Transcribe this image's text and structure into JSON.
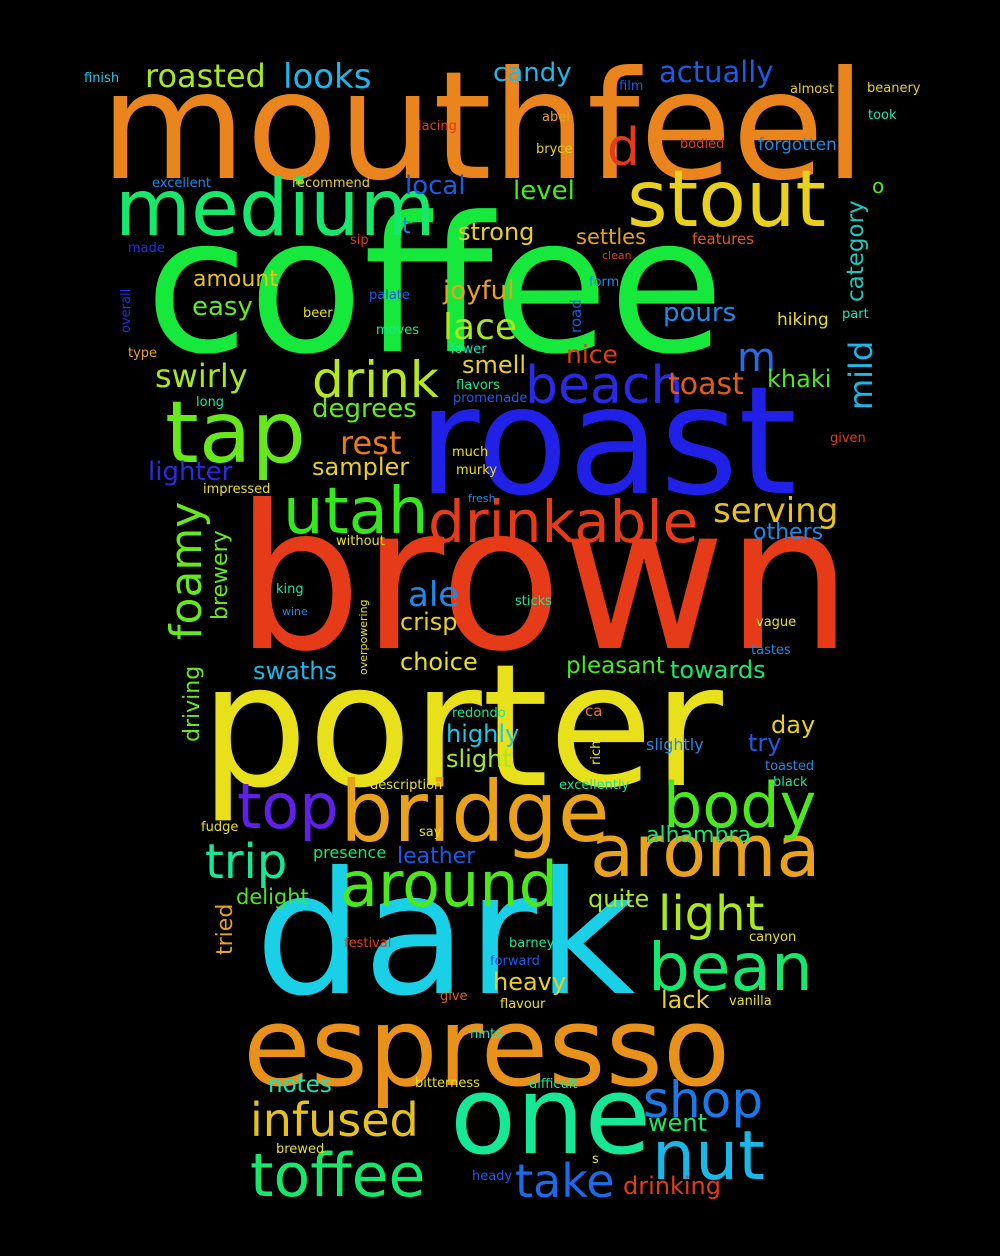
{
  "words": [
    {
      "text": "mouthfeel",
      "color": "#e9851c"
    },
    {
      "text": "coffee",
      "color": "#17e83c"
    },
    {
      "text": "roast",
      "color": "#2020e6"
    },
    {
      "text": "brown",
      "color": "#e53b18"
    },
    {
      "text": "porter",
      "color": "#e8e01a"
    },
    {
      "text": "dark",
      "color": "#19d0e6"
    },
    {
      "text": "espresso",
      "color": "#e8921c"
    },
    {
      "text": "one",
      "color": "#17e896"
    },
    {
      "text": "medium",
      "color": "#17e86b"
    },
    {
      "text": "stout",
      "color": "#e8d01c"
    },
    {
      "text": "tap",
      "color": "#66e81c"
    },
    {
      "text": "bridge",
      "color": "#e8a21c"
    },
    {
      "text": "aroma",
      "color": "#e8a21c"
    },
    {
      "text": "around",
      "color": "#4ae81c"
    },
    {
      "text": "drinkable",
      "color": "#e53b18"
    },
    {
      "text": "utah",
      "color": "#33e81c"
    },
    {
      "text": "beach",
      "color": "#2a2ae6"
    },
    {
      "text": "drink",
      "color": "#b8e81c"
    },
    {
      "text": "body",
      "color": "#4ae81c"
    },
    {
      "text": "bean",
      "color": "#17e86b"
    },
    {
      "text": "top",
      "color": "#6020e6"
    },
    {
      "text": "nut",
      "color": "#19b8e6"
    },
    {
      "text": "toffee",
      "color": "#17e86b"
    },
    {
      "text": "shop",
      "color": "#1c7ae8"
    },
    {
      "text": "take",
      "color": "#1c6ae8"
    },
    {
      "text": "infused",
      "color": "#e8c21c"
    },
    {
      "text": "light",
      "color": "#a8e81c"
    },
    {
      "text": "trip",
      "color": "#17e896"
    },
    {
      "text": "d",
      "color": "#e53b18"
    },
    {
      "text": "m",
      "color": "#2a6ae6"
    },
    {
      "text": "foamy",
      "color": "#66e81c"
    },
    {
      "text": "roasted",
      "color": "#a8e81c"
    },
    {
      "text": "looks",
      "color": "#1cb8e8"
    },
    {
      "text": "candy",
      "color": "#1cb8e8"
    },
    {
      "text": "actually",
      "color": "#1c5ae8"
    },
    {
      "text": "serving",
      "color": "#e8c21c"
    },
    {
      "text": "swirly",
      "color": "#a8e81c"
    },
    {
      "text": "toast",
      "color": "#e55a18"
    },
    {
      "text": "lace",
      "color": "#a8e81c"
    },
    {
      "text": "rest",
      "color": "#e87a1c"
    },
    {
      "text": "mild",
      "color": "#1cb8e8"
    },
    {
      "text": "ale",
      "color": "#1c8ae8"
    },
    {
      "text": "joyful",
      "color": "#e8a21c"
    },
    {
      "text": "local",
      "color": "#1c5ae8"
    },
    {
      "text": "level",
      "color": "#4ae81c"
    },
    {
      "text": "strong",
      "color": "#e8d01c"
    },
    {
      "text": "settles",
      "color": "#e8a21c"
    },
    {
      "text": "easy",
      "color": "#66e81c"
    },
    {
      "text": "amount",
      "color": "#e8c21c"
    },
    {
      "text": "pours",
      "color": "#1c8ae8"
    },
    {
      "text": "degrees",
      "color": "#66e81c"
    },
    {
      "text": "lighter",
      "color": "#2a2ae6"
    },
    {
      "text": "smell",
      "color": "#e8d01c"
    },
    {
      "text": "nice",
      "color": "#e53b18"
    },
    {
      "text": "khaki",
      "color": "#4ae81c"
    },
    {
      "text": "sampler",
      "color": "#e8d01c"
    },
    {
      "text": "category",
      "color": "#1cc8b8"
    },
    {
      "text": "brewery",
      "color": "#66e81c"
    },
    {
      "text": "others",
      "color": "#1c8ae8"
    },
    {
      "text": "crisp",
      "color": "#e8d01c"
    },
    {
      "text": "choice",
      "color": "#e8e01a"
    },
    {
      "text": "pleasant",
      "color": "#4ae81c"
    },
    {
      "text": "towards",
      "color": "#17e86b"
    },
    {
      "text": "swaths",
      "color": "#1cb8e8"
    },
    {
      "text": "driving",
      "color": "#66e81c"
    },
    {
      "text": "highly",
      "color": "#1cc8e8"
    },
    {
      "text": "slight",
      "color": "#a8e81c"
    },
    {
      "text": "day",
      "color": "#e8d01c"
    },
    {
      "text": "try",
      "color": "#1c5ae8"
    },
    {
      "text": "slightly",
      "color": "#1c8ae8"
    },
    {
      "text": "alhambra",
      "color": "#17e86b"
    },
    {
      "text": "leather",
      "color": "#1c5ae8"
    },
    {
      "text": "presence",
      "color": "#17e86b"
    },
    {
      "text": "delight",
      "color": "#4ae81c"
    },
    {
      "text": "quite",
      "color": "#a8e81c"
    },
    {
      "text": "tried",
      "color": "#e8a21c"
    },
    {
      "text": "heavy",
      "color": "#e8d01c"
    },
    {
      "text": "lack",
      "color": "#e8d01c"
    },
    {
      "text": "notes",
      "color": "#17e8b8"
    },
    {
      "text": "went",
      "color": "#17e86b"
    },
    {
      "text": "drinking",
      "color": "#e53b18"
    },
    {
      "text": "o",
      "color": "#4ae81c"
    },
    {
      "text": "t",
      "color": "#1c8ae8"
    },
    {
      "text": "finish",
      "color": "#1cc8e8"
    },
    {
      "text": "film",
      "color": "#1c5ae8"
    },
    {
      "text": "almost",
      "color": "#e8d01c"
    },
    {
      "text": "beanery",
      "color": "#e8d01c"
    },
    {
      "text": "took",
      "color": "#17e8b8"
    },
    {
      "text": "lacing",
      "color": "#e53b18"
    },
    {
      "text": "abel",
      "color": "#e8a21c"
    },
    {
      "text": "bodied",
      "color": "#e53b18"
    },
    {
      "text": "forgotten",
      "color": "#1c8ae8"
    },
    {
      "text": "bryce",
      "color": "#e8d01c"
    },
    {
      "text": "excellent",
      "color": "#1c8ae8"
    },
    {
      "text": "recommend",
      "color": "#e8d01c"
    },
    {
      "text": "made",
      "color": "#2a2ae6"
    },
    {
      "text": "sip",
      "color": "#e53b18"
    },
    {
      "text": "features",
      "color": "#e55a18"
    },
    {
      "text": "clean",
      "color": "#e53b18"
    },
    {
      "text": "overall",
      "color": "#2a2ae6"
    },
    {
      "text": "palate",
      "color": "#1c5ae8"
    },
    {
      "text": "form",
      "color": "#1c8ae8"
    },
    {
      "text": "road",
      "color": "#1c5ae8"
    },
    {
      "text": "beer",
      "color": "#e8e01a"
    },
    {
      "text": "moves",
      "color": "#17e896"
    },
    {
      "text": "hiking",
      "color": "#e8e01a"
    },
    {
      "text": "part",
      "color": "#17e8b8"
    },
    {
      "text": "type",
      "color": "#e8a21c"
    },
    {
      "text": "lower",
      "color": "#17e8b8"
    },
    {
      "text": "flavors",
      "color": "#17e896"
    },
    {
      "text": "long",
      "color": "#17e896"
    },
    {
      "text": "promenade",
      "color": "#1c5ae8"
    },
    {
      "text": "given",
      "color": "#e53b18"
    },
    {
      "text": "much",
      "color": "#e8e01a"
    },
    {
      "text": "impressed",
      "color": "#e8e01a"
    },
    {
      "text": "murky",
      "color": "#e8e01a"
    },
    {
      "text": "fresh",
      "color": "#1c8ae8"
    },
    {
      "text": "without",
      "color": "#e8e01a"
    },
    {
      "text": "king",
      "color": "#17e896"
    },
    {
      "text": "wine",
      "color": "#1c8ae8"
    },
    {
      "text": "overpowering",
      "color": "#e8e01a"
    },
    {
      "text": "sticks",
      "color": "#17e896"
    },
    {
      "text": "vague",
      "color": "#e8e01a"
    },
    {
      "text": "tastes",
      "color": "#1c8ae8"
    },
    {
      "text": "redondo",
      "color": "#17e896"
    },
    {
      "text": "ca",
      "color": "#e87a1c"
    },
    {
      "text": "rich",
      "color": "#e8e01a"
    },
    {
      "text": "toasted",
      "color": "#1c8ae8"
    },
    {
      "text": "black",
      "color": "#17e896"
    },
    {
      "text": "description",
      "color": "#e8e01a"
    },
    {
      "text": "excellently",
      "color": "#17e896"
    },
    {
      "text": "fudge",
      "color": "#e8e01a"
    },
    {
      "text": "say",
      "color": "#e8e01a"
    },
    {
      "text": "festival",
      "color": "#e53b18"
    },
    {
      "text": "barney",
      "color": "#17e896"
    },
    {
      "text": "canyon",
      "color": "#e8e01a"
    },
    {
      "text": "forward",
      "color": "#1c5ae8"
    },
    {
      "text": "give",
      "color": "#e55a18"
    },
    {
      "text": "flavour",
      "color": "#e8e01a"
    },
    {
      "text": "vanilla",
      "color": "#e8e01a"
    },
    {
      "text": "hints",
      "color": "#17e8b8"
    },
    {
      "text": "bitterness",
      "color": "#e8e01a"
    },
    {
      "text": "difficult",
      "color": "#17e896"
    },
    {
      "text": "brewed",
      "color": "#e8e01a"
    },
    {
      "text": "s",
      "color": "#e8e01a"
    },
    {
      "text": "heady",
      "color": "#1c5ae8"
    }
  ]
}
